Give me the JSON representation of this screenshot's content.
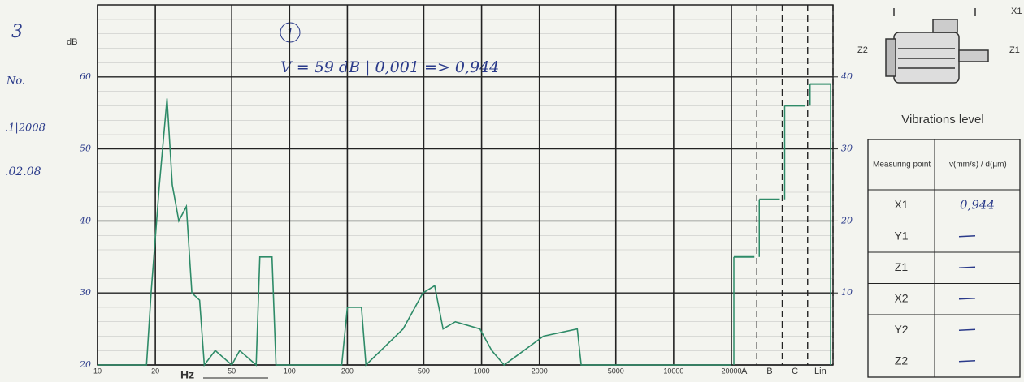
{
  "margin_notes": [
    "3",
    "No.",
    ".1|2008",
    ".02.08"
  ],
  "chart_data": {
    "type": "line",
    "ylabel": "dB",
    "xlabel": "Hz",
    "annotation_marker": "1",
    "annotation": "V = 59 dB | 0,001 => 0,944",
    "xscale": "log",
    "x": [
      10,
      18,
      19,
      21,
      23,
      24.5,
      26.5,
      29,
      31,
      34,
      36,
      41,
      50,
      55,
      67,
      70,
      81,
      85,
      187,
      200,
      237,
      250,
      390,
      495,
      570,
      630,
      730,
      980,
      1130,
      1310,
      2100,
      3150,
      3300,
      20000
    ],
    "values": [
      20,
      20,
      30,
      45,
      57,
      45,
      40,
      42,
      30,
      29,
      20,
      22,
      20,
      22,
      20,
      35,
      35,
      20,
      20,
      28,
      28,
      20,
      25,
      30,
      31,
      25,
      26,
      25,
      22,
      20,
      24,
      25,
      20,
      20
    ],
    "color": "#2e8b68",
    "xlim": [
      10,
      20000
    ],
    "xticks": [
      10,
      20,
      50,
      100,
      200,
      500,
      1000,
      2000,
      5000,
      10000,
      20000
    ],
    "ylim": [
      20,
      70
    ],
    "yticks": [
      20,
      30,
      40,
      50,
      60
    ],
    "y2lim": [
      0,
      50
    ],
    "y2ticks": [
      10,
      20,
      30,
      40
    ],
    "weighted": {
      "categories": [
        "A",
        "B",
        "C",
        "Lin"
      ],
      "values": [
        35,
        43,
        56,
        59
      ]
    },
    "grid": true
  },
  "panel": {
    "axis_labels": [
      "X1",
      "Z1",
      "Z2"
    ],
    "title": "Vibrations level",
    "table": {
      "header": [
        "Measuring point",
        "v(mm/s) / d(µm)"
      ],
      "rows": [
        [
          "X1",
          "0,944"
        ],
        [
          "Y1"
        ],
        [
          "Z1"
        ],
        [
          "X2"
        ],
        [
          "Y2"
        ],
        [
          "Z2"
        ]
      ]
    }
  }
}
